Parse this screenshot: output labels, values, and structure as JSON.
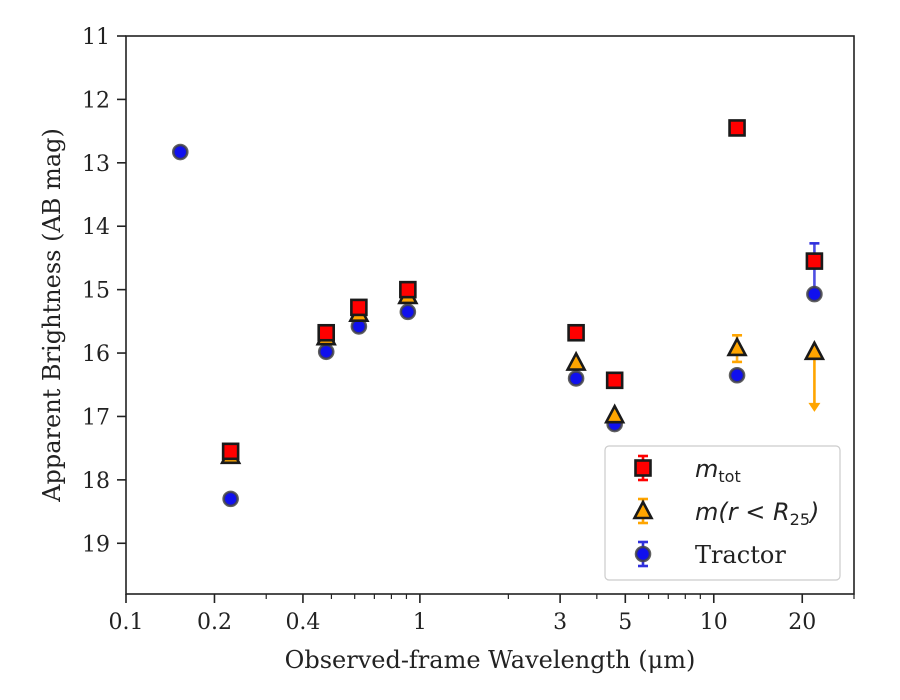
{
  "chart_data": {
    "type": "scatter",
    "xlabel": "Observed-frame Wavelength (μm)",
    "ylabel": "Apparent Brightness (AB mag)",
    "xscale": "log",
    "xlim": [
      0.1,
      30
    ],
    "ylim": [
      19.8,
      11
    ],
    "y_inverted": true,
    "x_ticks": [
      0.1,
      0.2,
      0.4,
      1,
      3,
      5,
      10,
      20
    ],
    "x_tick_labels": [
      "0.1",
      "0.2",
      "0.4",
      "1",
      "3",
      "5",
      "10",
      "20"
    ],
    "y_ticks": [
      11,
      12,
      13,
      14,
      15,
      16,
      17,
      18,
      19
    ],
    "y_tick_labels": [
      "11",
      "12",
      "13",
      "14",
      "15",
      "16",
      "17",
      "18",
      "19"
    ],
    "grid": false,
    "legend_position": "lower-right",
    "series": [
      {
        "name": "m_tot",
        "legend_main": "m",
        "legend_sub": "tot",
        "marker": "square",
        "face_color": "#ff0000",
        "edge_color": "#1a1a1a",
        "error_color": "#ff0000",
        "points": [
          {
            "x": 0.227,
            "y": 17.55
          },
          {
            "x": 0.48,
            "y": 15.68
          },
          {
            "x": 0.62,
            "y": 15.28
          },
          {
            "x": 0.91,
            "y": 15.0
          },
          {
            "x": 3.4,
            "y": 15.68
          },
          {
            "x": 4.6,
            "y": 16.43
          },
          {
            "x": 12.0,
            "y": 12.45
          },
          {
            "x": 22.0,
            "y": 14.55
          }
        ]
      },
      {
        "name": "m(r < R25)",
        "legend_main": "m(r < R",
        "legend_sub": "25",
        "legend_close": ")",
        "marker": "triangle",
        "face_color": "#ffa500",
        "edge_color": "#1a1a1a",
        "error_color": "#ffa500",
        "points": [
          {
            "x": 0.227,
            "y": 17.62
          },
          {
            "x": 0.48,
            "y": 15.75
          },
          {
            "x": 0.62,
            "y": 15.38
          },
          {
            "x": 0.91,
            "y": 15.1
          },
          {
            "x": 3.4,
            "y": 16.15
          },
          {
            "x": 4.6,
            "y": 16.98
          },
          {
            "x": 12.0,
            "y": 15.92,
            "err_low": 0.2,
            "err_high": 0.22
          },
          {
            "x": 22.0,
            "y": 15.98,
            "upper_limit_to": 16.88
          }
        ]
      },
      {
        "name": "Tractor",
        "legend_main": "Tractor",
        "marker": "circle",
        "face_color": "#1010ee",
        "edge_color": "#444444",
        "error_color": "#3030dd",
        "points": [
          {
            "x": 0.153,
            "y": 12.83
          },
          {
            "x": 0.227,
            "y": 18.3
          },
          {
            "x": 0.48,
            "y": 15.98
          },
          {
            "x": 0.62,
            "y": 15.58
          },
          {
            "x": 0.91,
            "y": 15.35
          },
          {
            "x": 3.4,
            "y": 16.4
          },
          {
            "x": 4.6,
            "y": 17.12
          },
          {
            "x": 12.0,
            "y": 16.35
          },
          {
            "x": 22.0,
            "y": 15.07,
            "err_low": 0.8,
            "err_high": 0.0
          }
        ]
      }
    ]
  }
}
